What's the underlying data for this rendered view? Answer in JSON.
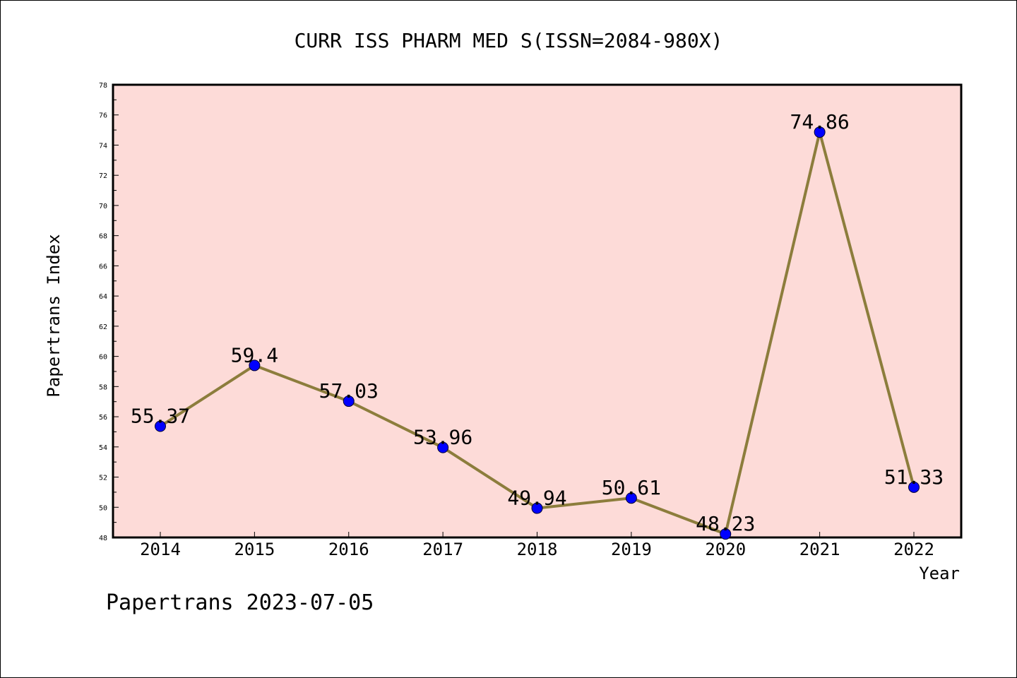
{
  "chart_data": {
    "type": "line",
    "title": "CURR ISS PHARM MED S(ISSN=2084-980X)",
    "xlabel": "Year",
    "ylabel": "Papertrans Index",
    "categories": [
      "2014",
      "2015",
      "2016",
      "2017",
      "2018",
      "2019",
      "2020",
      "2021",
      "2022"
    ],
    "series": [
      {
        "values": [
          55.37,
          59.4,
          57.03,
          53.96,
          49.94,
          50.61,
          48.23,
          74.86,
          51.33
        ],
        "labels": [
          "55.37",
          "59.4",
          "57.03",
          "53.96",
          "49.94",
          "50.61",
          "48.23",
          "74.86",
          "51.33"
        ]
      }
    ],
    "ylim": [
      48,
      78
    ],
    "yticks": [
      "48",
      "50",
      "52",
      "54",
      "56",
      "58",
      "60",
      "62",
      "64",
      "66",
      "68",
      "70",
      "72",
      "74",
      "76",
      "78"
    ],
    "grid": false,
    "colors": {
      "plot_background": "#fddbd8",
      "line": "#8c7d3c",
      "marker": "#0000ff"
    }
  },
  "footer": {
    "text": "Papertrans 2023-07-05"
  }
}
